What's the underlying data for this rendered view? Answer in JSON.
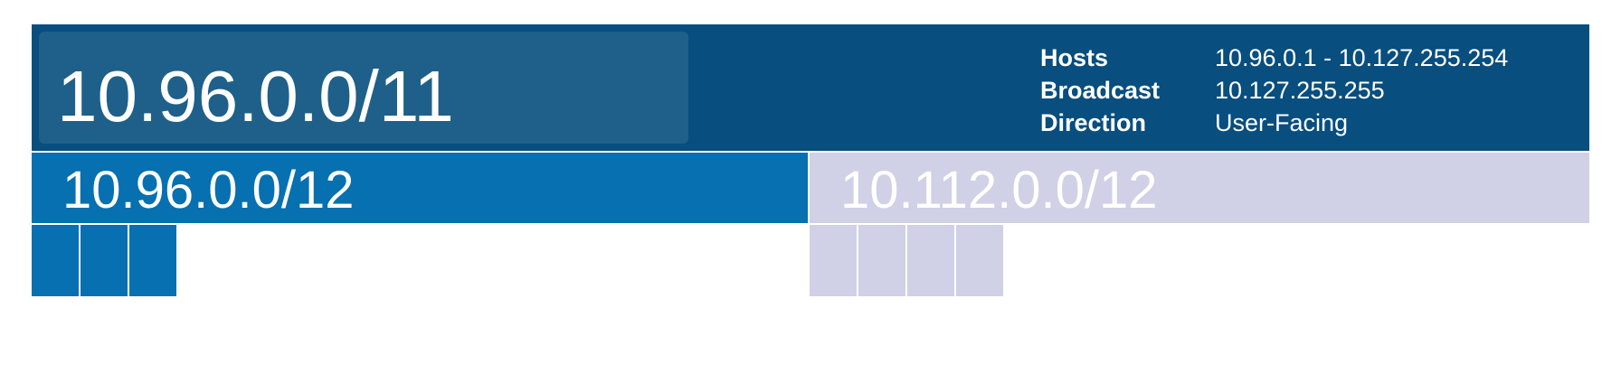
{
  "network": {
    "cidr": "10.96.0.0/11",
    "details": [
      {
        "key": "Hosts",
        "value": "10.96.0.1 - 10.127.255.254"
      },
      {
        "key": "Broadcast",
        "value": "10.127.255.255"
      },
      {
        "key": "Direction",
        "value": "User-Facing"
      }
    ]
  },
  "subnets": [
    {
      "cidr": "10.96.0.0/12",
      "color": "#0670b0",
      "children": 3
    },
    {
      "cidr": "10.112.0.0/12",
      "color": "#d0d0e6",
      "children": 4
    }
  ],
  "colors": {
    "header_background": "#084e7e",
    "cidr_box_background": "#1e6089"
  }
}
